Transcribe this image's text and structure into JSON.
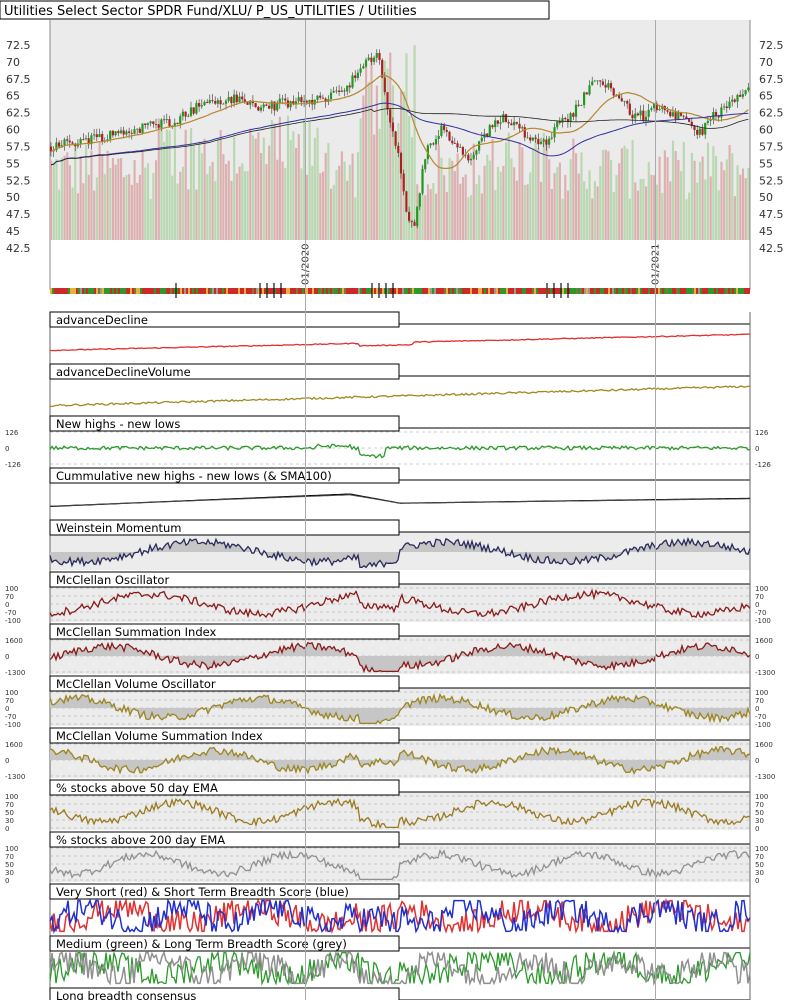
{
  "chart_data": {
    "type": "line",
    "title": "Utilities Select Sector SPDR Fund/XLU/ P_US_UTILITIES / Utilities",
    "price_axis": {
      "ylim": [
        42.5,
        75
      ],
      "ticks": [
        "72.5",
        "70",
        "67.5",
        "65",
        "62.5",
        "60",
        "57.5",
        "55",
        "52.5",
        "50",
        "47.5",
        "45",
        "42.5"
      ]
    },
    "date_labels": [
      "01/2020",
      "01/2021"
    ],
    "price_path": {
      "type": "candlestick",
      "anchors": [
        [
          0,
          57.5
        ],
        [
          5,
          58.5
        ],
        [
          12,
          60
        ],
        [
          18,
          61.5
        ],
        [
          22,
          64
        ],
        [
          27,
          64.5
        ],
        [
          30,
          63.2
        ],
        [
          34,
          64
        ],
        [
          38,
          64.2
        ],
        [
          42,
          66
        ],
        [
          45,
          69.5
        ],
        [
          47,
          71
        ],
        [
          48.5,
          62
        ],
        [
          50,
          55
        ],
        [
          51,
          48
        ],
        [
          52,
          45
        ],
        [
          53,
          52
        ],
        [
          54,
          57
        ],
        [
          56,
          60
        ],
        [
          58,
          57.5
        ],
        [
          60,
          55.5
        ],
        [
          62,
          58.5
        ],
        [
          63,
          60
        ],
        [
          65,
          62
        ],
        [
          67,
          60.5
        ],
        [
          69,
          58.5
        ],
        [
          71,
          58.5
        ],
        [
          73,
          61
        ],
        [
          75,
          62.5
        ],
        [
          77,
          66
        ],
        [
          79,
          67.5
        ],
        [
          81,
          65.5
        ],
        [
          83,
          62.5
        ],
        [
          85,
          62
        ],
        [
          87,
          63.5
        ],
        [
          89,
          62.5
        ],
        [
          91,
          61
        ],
        [
          93,
          59.5
        ],
        [
          95,
          62
        ],
        [
          97,
          63.5
        ],
        [
          100,
          65.5
        ]
      ],
      "sma_short": {
        "color": "#b8862b"
      },
      "sma_long": {
        "color": "#3030a0"
      },
      "sma_200": {
        "color": "#222222"
      }
    },
    "score_bar": {
      "colors": [
        "#cc2a2a",
        "#2b9a2b",
        "#e8b23a",
        "#7a7a3a",
        "#9a9a9a",
        "#111111"
      ],
      "marker_positions": [
        18,
        30,
        31,
        32,
        33,
        46,
        47,
        48,
        49,
        71,
        72,
        73,
        74
      ]
    },
    "panels": [
      {
        "title": "advanceDecline",
        "color": "#e03030",
        "fill": false,
        "labels": []
      },
      {
        "title": "advanceDeclineVolume",
        "color": "#a08a20",
        "fill": false,
        "labels": []
      },
      {
        "title": "New highs - new lows",
        "color": "#2a9a2a",
        "fill": false,
        "labels": [
          "126",
          "0",
          "-126"
        ]
      },
      {
        "title": "Cummulative new highs - new lows (& SMA100)",
        "color": "#111111",
        "fill": false,
        "labels": []
      },
      {
        "title": "Weinstein Momentum",
        "color": "#2a2a5a",
        "fill": true,
        "labels": []
      },
      {
        "title": "McClellan Oscillator",
        "color": "#8a1a1a",
        "fill": false,
        "labels": [
          "100",
          "70",
          "0",
          "-70",
          "-100"
        ]
      },
      {
        "title": "McClellan Summation Index",
        "color": "#8a1a1a",
        "fill": true,
        "labels": [
          "1600",
          "0",
          "-1300"
        ]
      },
      {
        "title": "McClellan Volume Oscillator",
        "color": "#9a8520",
        "fill": true,
        "labels": [
          "100",
          "70",
          "0",
          "-70",
          "-100"
        ]
      },
      {
        "title": "McClellan Volume Summation Index",
        "color": "#9a8520",
        "fill": true,
        "labels": [
          "1600",
          "0",
          "-1300"
        ]
      },
      {
        "title": "% stocks above 50 day EMA",
        "color": "#9a7a20",
        "fill": false,
        "labels": [
          "100",
          "70",
          "50",
          "30",
          "0"
        ]
      },
      {
        "title": "% stocks above 200 day EMA",
        "color": "#909090",
        "fill": false,
        "labels": [
          "100",
          "70",
          "50",
          "30",
          "0"
        ]
      },
      {
        "title": "Very Short (red) & Short Term Breadth Score (blue)",
        "color": "#e03030",
        "color2": "#2030d0",
        "fill": false,
        "labels": []
      },
      {
        "title": "Medium (green) & Long Term Breadth Score (grey)",
        "color": "#2a9a2a",
        "color2": "#909090",
        "fill": false,
        "labels": []
      },
      {
        "title": "Long breadth consensus",
        "color": "#cc2a2a",
        "fill": false,
        "labels": []
      }
    ]
  }
}
